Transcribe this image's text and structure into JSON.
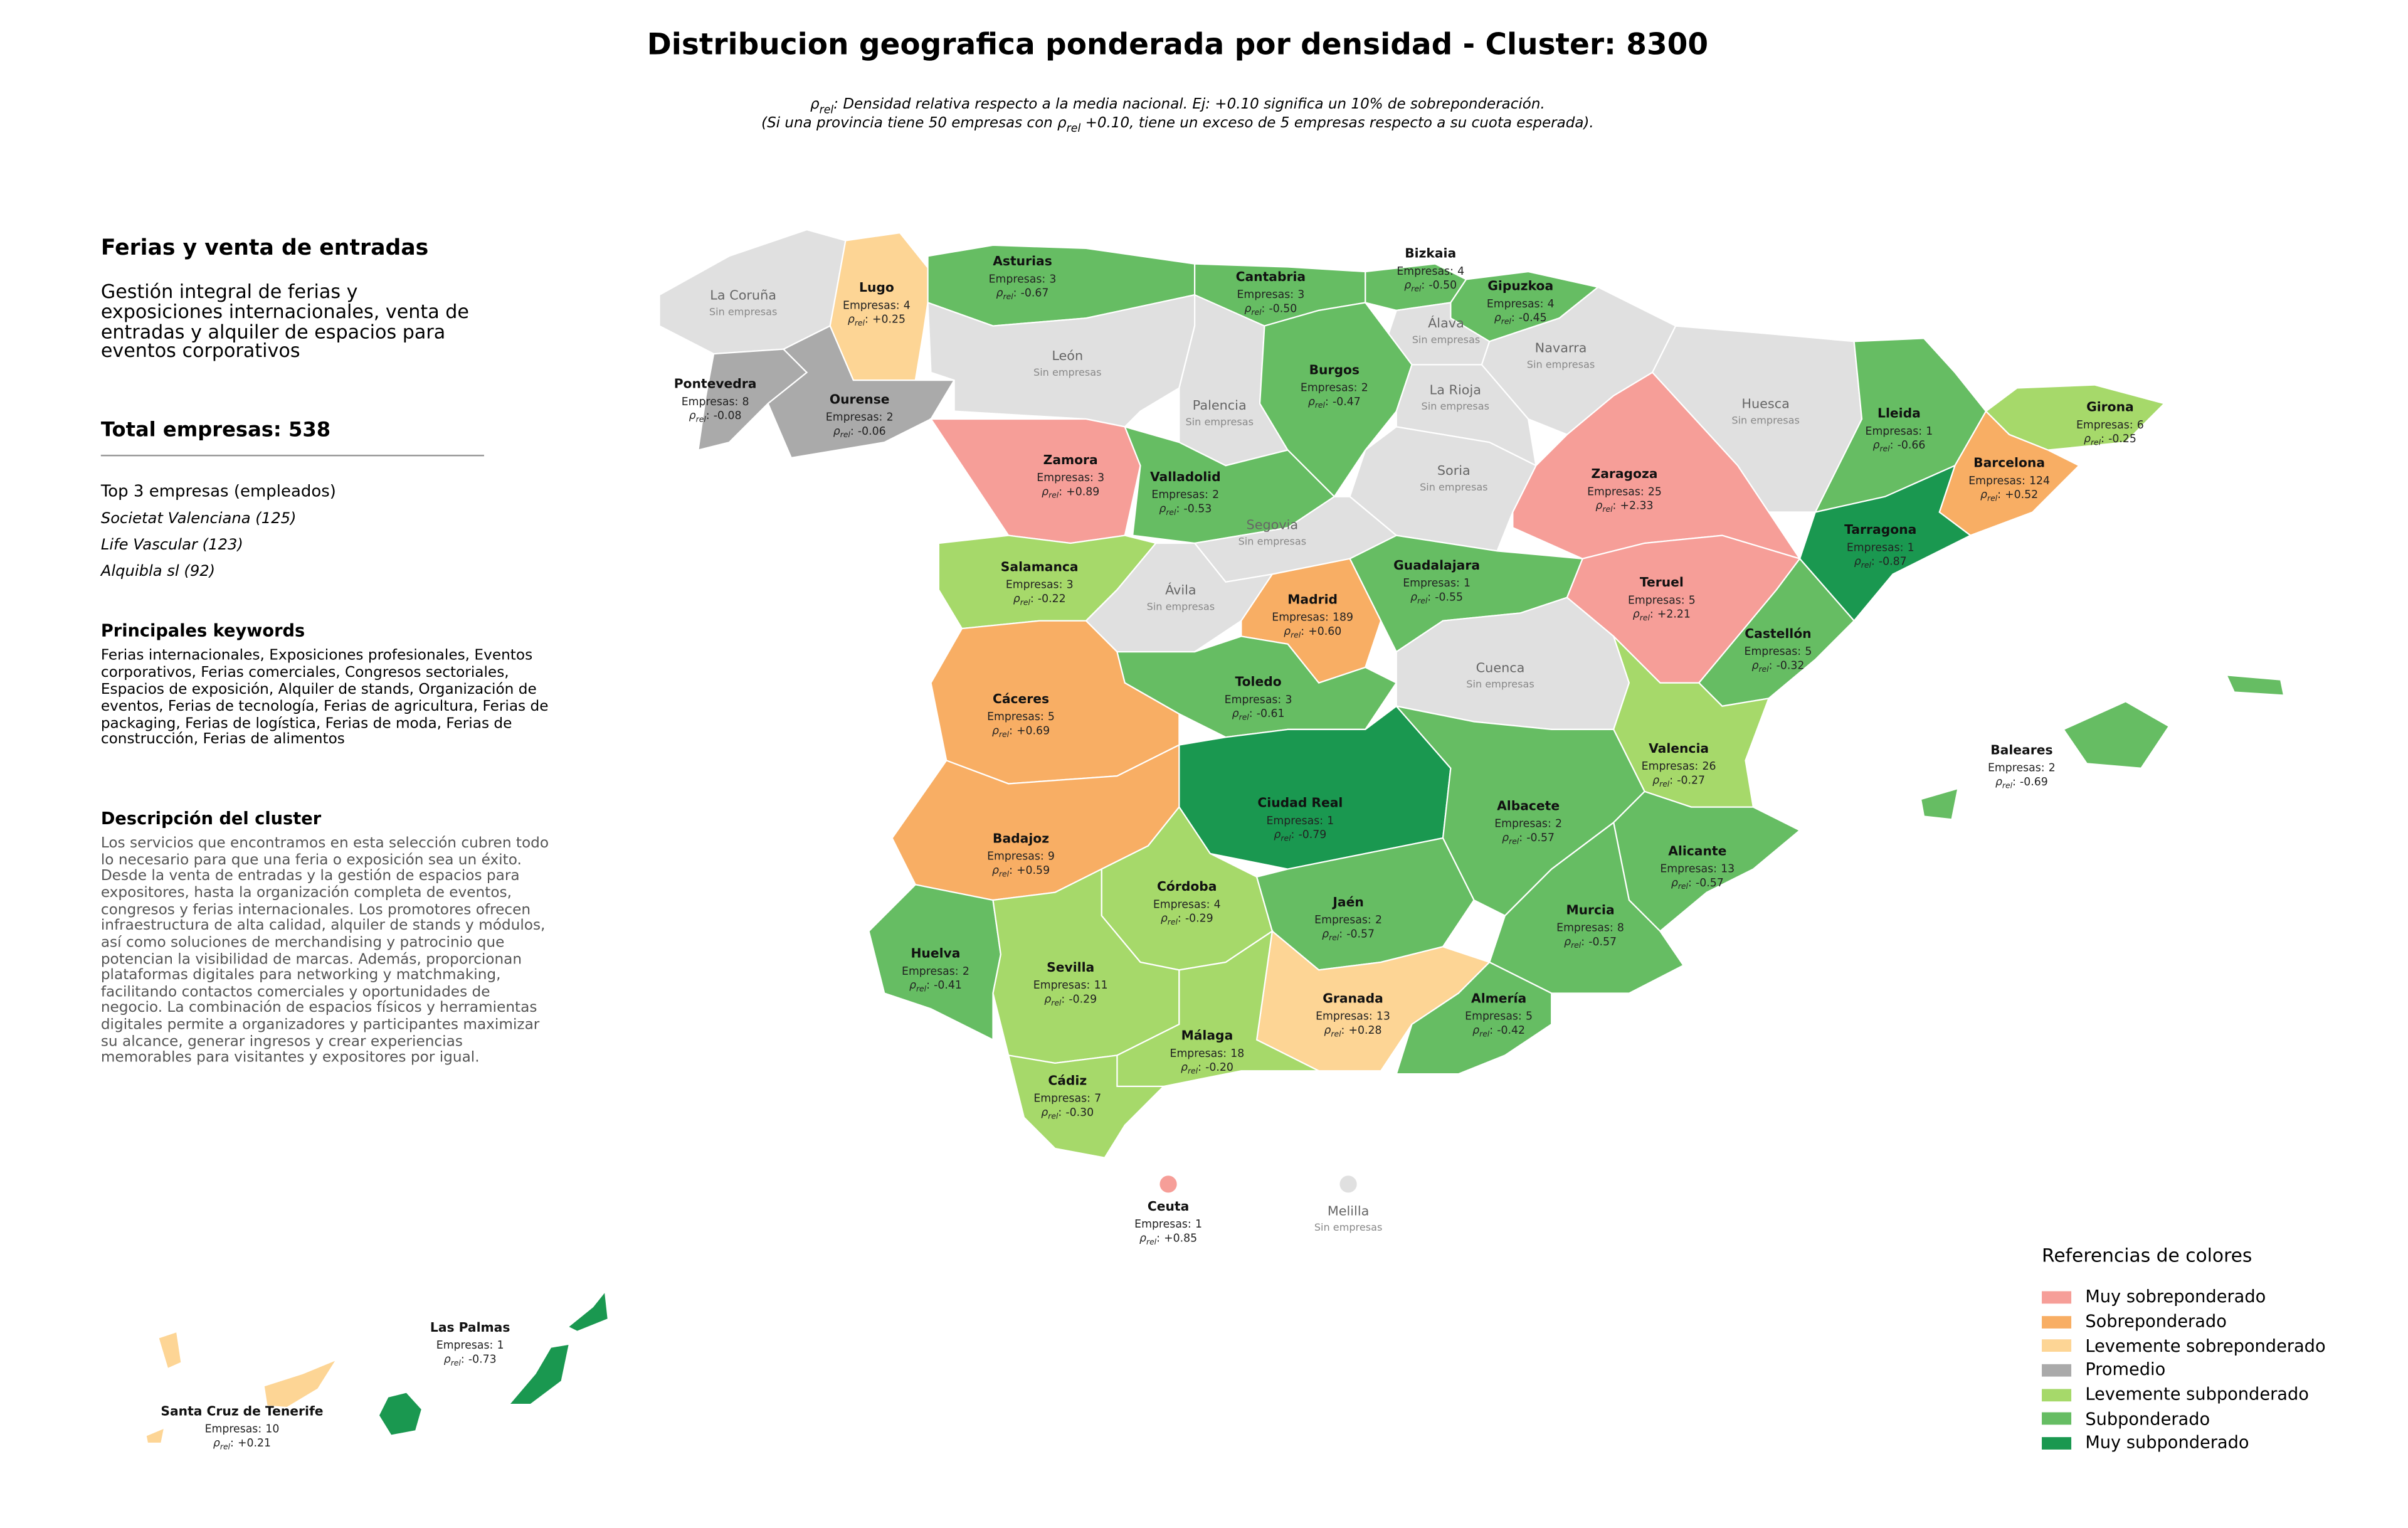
{
  "title": "Distribucion geografica ponderada por densidad - Cluster: 8300",
  "subtitle": {
    "line1": ": Densidad relativa respecto a la media nacional. Ej: +0.10 significa un 10% de sobreponderación.",
    "line2_start": "(Si una provincia tiene 50 empresas con ",
    "line2_end": " +0.10, tiene un exceso de 5 empresas respecto a su cuota esperada)."
  },
  "labels": {
    "rho": "ρ",
    "rho_sub": "rel",
    "colon": ":",
    "empresas": "Empresas:",
    "sin_empresas": "Sin empresas"
  },
  "panel": {
    "heading": "Ferias y venta de entradas",
    "description": "Gestión integral de ferias y exposiciones internacionales, venta de entradas y alquiler de espacios para eventos corporativos",
    "total_label": "Total empresas:",
    "total": 538,
    "top_heading": "Top 3 empresas (empleados)",
    "top": [
      "Societat Valenciana (125)",
      "Life Vascular (123)",
      "Alquibla sl (92)"
    ],
    "keywords_heading": "Principales keywords",
    "keywords": "Ferias internacionales, Exposiciones profesionales, Eventos corporativos, Ferias comerciales, Congresos sectoriales, Espacios de exposición, Alquiler de stands, Organización de eventos, Ferias de tecnología, Ferias de agricultura, Ferias de packaging, Ferias de logística, Ferias de moda, Ferias de construcción, Ferias de alimentos",
    "cluster_heading": "Descripción del cluster",
    "cluster_text": "Los servicios que encontramos en esta selección cubren todo lo necesario para que una feria o exposición sea un éxito. Desde la venta de entradas y la gestión de espacios para expositores, hasta la organización completa de eventos, congresos y ferias internacionales. Los promotores ofrecen infraestructura de alta calidad, alquiler de stands y módulos, así como soluciones de merchandising y patrocinio que potencian la visibilidad de marcas. Además, proporcionan plataformas digitales para networking y matchmaking, facilitando contactos comerciales y oportunidades de negocio. La combinación de espacios físicos y herramientas digitales permite a organizadores y participantes maximizar su alcance, generar ingresos y crear experiencias memorables para visitantes y expositores por igual."
  },
  "legend": {
    "title": "Referencias de colores",
    "items": [
      {
        "name": "Muy sobreponderado",
        "color": "#f69e98"
      },
      {
        "name": "Sobreponderado",
        "color": "#f8ae64"
      },
      {
        "name": "Levemente sobreponderado",
        "color": "#fdd595"
      },
      {
        "name": "Promedio",
        "color": "#aaaaaa"
      },
      {
        "name": "Levemente subponderado",
        "color": "#a6d96a"
      },
      {
        "name": "Subponderado",
        "color": "#66bd63"
      },
      {
        "name": "Muy subponderado",
        "color": "#1a9850"
      }
    ]
  },
  "no_data_color": "#e0e0e0",
  "provinces": [
    {
      "name": "La Coruña"
    },
    {
      "name": "Lugo",
      "empresas": 4,
      "rho": "+0.25",
      "level": 2
    },
    {
      "name": "Asturias",
      "empresas": 3,
      "rho": "-0.67",
      "level": 5
    },
    {
      "name": "Cantabria",
      "empresas": 3,
      "rho": "-0.50",
      "level": 5
    },
    {
      "name": "Bizkaia",
      "empresas": 4,
      "rho": "-0.50",
      "level": 5
    },
    {
      "name": "Gipuzkoa",
      "empresas": 4,
      "rho": "-0.45",
      "level": 5
    },
    {
      "name": "Álava"
    },
    {
      "name": "Navarra"
    },
    {
      "name": "Pontevedra",
      "empresas": 8,
      "rho": "-0.08",
      "level": 3
    },
    {
      "name": "Ourense",
      "empresas": 2,
      "rho": "-0.06",
      "level": 3
    },
    {
      "name": "León"
    },
    {
      "name": "Palencia"
    },
    {
      "name": "Burgos",
      "empresas": 2,
      "rho": "-0.47",
      "level": 5
    },
    {
      "name": "La Rioja"
    },
    {
      "name": "Huesca"
    },
    {
      "name": "Lleida",
      "empresas": 1,
      "rho": "-0.66",
      "level": 5
    },
    {
      "name": "Girona",
      "empresas": 6,
      "rho": "-0.25",
      "level": 4
    },
    {
      "name": "Zamora",
      "empresas": 3,
      "rho": "+0.89",
      "level": 0
    },
    {
      "name": "Valladolid",
      "empresas": 2,
      "rho": "-0.53",
      "level": 5
    },
    {
      "name": "Soria"
    },
    {
      "name": "Zaragoza",
      "empresas": 25,
      "rho": "+2.33",
      "level": 0
    },
    {
      "name": "Barcelona",
      "empresas": 124,
      "rho": "+0.52",
      "level": 1
    },
    {
      "name": "Tarragona",
      "empresas": 1,
      "rho": "-0.87",
      "level": 6
    },
    {
      "name": "Salamanca",
      "empresas": 3,
      "rho": "-0.22",
      "level": 4
    },
    {
      "name": "Segovia"
    },
    {
      "name": "Guadalajara",
      "empresas": 1,
      "rho": "-0.55",
      "level": 5
    },
    {
      "name": "Ávila"
    },
    {
      "name": "Madrid",
      "empresas": 189,
      "rho": "+0.60",
      "level": 1
    },
    {
      "name": "Teruel",
      "empresas": 5,
      "rho": "+2.21",
      "level": 0
    },
    {
      "name": "Castellón",
      "empresas": 5,
      "rho": "-0.32",
      "level": 5
    },
    {
      "name": "Cáceres",
      "empresas": 5,
      "rho": "+0.69",
      "level": 1
    },
    {
      "name": "Toledo",
      "empresas": 3,
      "rho": "-0.61",
      "level": 5
    },
    {
      "name": "Cuenca"
    },
    {
      "name": "Valencia",
      "empresas": 26,
      "rho": "-0.27",
      "level": 4
    },
    {
      "name": "Baleares",
      "empresas": 2,
      "rho": "-0.69",
      "level": 5
    },
    {
      "name": "Ciudad Real",
      "empresas": 1,
      "rho": "-0.79",
      "level": 6
    },
    {
      "name": "Albacete",
      "empresas": 2,
      "rho": "-0.57",
      "level": 5
    },
    {
      "name": "Badajoz",
      "empresas": 9,
      "rho": "+0.59",
      "level": 1
    },
    {
      "name": "Alicante",
      "empresas": 13,
      "rho": "-0.57",
      "level": 5
    },
    {
      "name": "Córdoba",
      "empresas": 4,
      "rho": "-0.29",
      "level": 4
    },
    {
      "name": "Jaén",
      "empresas": 2,
      "rho": "-0.57",
      "level": 5
    },
    {
      "name": "Murcia",
      "empresas": 8,
      "rho": "-0.57",
      "level": 5
    },
    {
      "name": "Huelva",
      "empresas": 2,
      "rho": "-0.41",
      "level": 5
    },
    {
      "name": "Sevilla",
      "empresas": 11,
      "rho": "-0.29",
      "level": 4
    },
    {
      "name": "Granada",
      "empresas": 13,
      "rho": "+0.28",
      "level": 2
    },
    {
      "name": "Almería",
      "empresas": 5,
      "rho": "-0.42",
      "level": 5
    },
    {
      "name": "Málaga",
      "empresas": 18,
      "rho": "-0.20",
      "level": 4
    },
    {
      "name": "Cádiz",
      "empresas": 7,
      "rho": "-0.30",
      "level": 4
    },
    {
      "name": "Ceuta",
      "empresas": 1,
      "rho": "+0.85",
      "level": 0
    },
    {
      "name": "Melilla"
    },
    {
      "name": "Las Palmas",
      "empresas": 1,
      "rho": "-0.73",
      "level": 6
    },
    {
      "name": "Santa Cruz de Tenerife",
      "empresas": 10,
      "rho": "+0.21",
      "level": 2
    }
  ]
}
